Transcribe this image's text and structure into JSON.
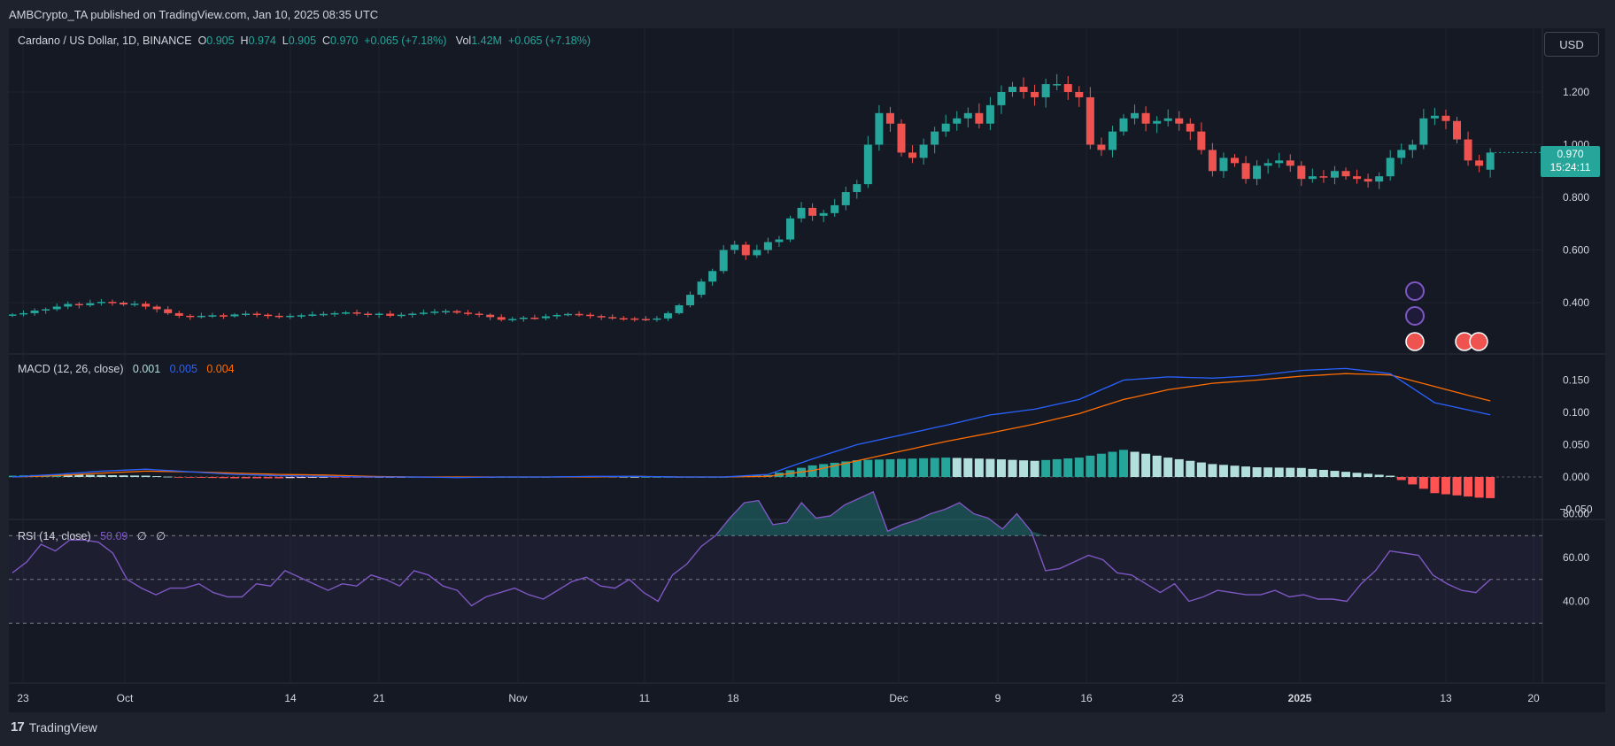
{
  "header": {
    "published": "AMBCrypto_TA published on TradingView.com, Jan 10, 2025 08:35 UTC"
  },
  "legend": {
    "symbol": "Cardano / US Dollar, 1D, BINANCE",
    "o_label": "O",
    "o_value": "0.905",
    "h_label": "H",
    "h_value": "0.974",
    "l_label": "L",
    "l_value": "0.905",
    "c_label": "C",
    "c_value": "0.970",
    "change": "+0.065 (+7.18%)",
    "vol_label": "Vol",
    "vol_value": "1.42M",
    "vol_change": "+0.065 (+7.18%)"
  },
  "macd_legend": {
    "label": "MACD (12, 26, close)",
    "hist": "0.001",
    "macd": "0.005",
    "signal": "0.004"
  },
  "rsi_legend": {
    "label": "RSI (14, close)",
    "value": "50.09",
    "extra1": "∅",
    "extra2": "∅"
  },
  "currency_button": "USD",
  "price_tag": {
    "price": "0.970",
    "countdown": "15:24:11"
  },
  "footer": {
    "brand": "TradingView",
    "logo": "17"
  },
  "colors": {
    "up": "#26a69a",
    "down": "#ef5350",
    "macd": "#2962ff",
    "signal": "#ff6d00",
    "rsi": "#7e57c2",
    "bg": "#151924"
  },
  "chart_data": [
    {
      "type": "candlestick",
      "title": "Cardano / US Dollar, 1D, BINANCE",
      "x_ticks": [
        "23",
        "Oct",
        "14",
        "21",
        "Nov",
        "11",
        "18",
        "Dec",
        "9",
        "16",
        "23",
        "2025",
        "13",
        "20"
      ],
      "y_ticks": [
        "1.200",
        "1.000",
        "0.800",
        "0.600",
        "0.400"
      ],
      "ylim": [
        0.21,
        1.38
      ],
      "grid": true,
      "closes": [
        0.355,
        0.36,
        0.37,
        0.375,
        0.385,
        0.395,
        0.39,
        0.398,
        0.403,
        0.4,
        0.393,
        0.396,
        0.385,
        0.375,
        0.36,
        0.35,
        0.345,
        0.35,
        0.352,
        0.348,
        0.355,
        0.358,
        0.354,
        0.35,
        0.346,
        0.35,
        0.352,
        0.355,
        0.357,
        0.36,
        0.363,
        0.358,
        0.354,
        0.358,
        0.35,
        0.354,
        0.358,
        0.362,
        0.366,
        0.368,
        0.362,
        0.358,
        0.354,
        0.345,
        0.335,
        0.338,
        0.343,
        0.341,
        0.348,
        0.353,
        0.357,
        0.354,
        0.349,
        0.345,
        0.341,
        0.34,
        0.338,
        0.335,
        0.34,
        0.36,
        0.39,
        0.43,
        0.48,
        0.52,
        0.6,
        0.62,
        0.58,
        0.6,
        0.63,
        0.64,
        0.72,
        0.76,
        0.73,
        0.74,
        0.77,
        0.82,
        0.85,
        1.0,
        1.12,
        1.08,
        0.97,
        0.95,
        1.0,
        1.05,
        1.08,
        1.1,
        1.12,
        1.08,
        1.15,
        1.2,
        1.22,
        1.2,
        1.18,
        1.23,
        1.23,
        1.2,
        1.18,
        1.0,
        0.98,
        1.05,
        1.1,
        1.12,
        1.08,
        1.09,
        1.1,
        1.08,
        1.05,
        0.98,
        0.9,
        0.95,
        0.93,
        0.87,
        0.92,
        0.93,
        0.94,
        0.92,
        0.87,
        0.88,
        0.875,
        0.9,
        0.88,
        0.87,
        0.86,
        0.88,
        0.95,
        0.98,
        1.0,
        1.1,
        1.11,
        1.09,
        1.02,
        0.94,
        0.92,
        0.97
      ],
      "opens": [
        0.35,
        0.355,
        0.36,
        0.37,
        0.375,
        0.385,
        0.395,
        0.39,
        0.398,
        0.403,
        0.4,
        0.393,
        0.396,
        0.385,
        0.375,
        0.36,
        0.35,
        0.345,
        0.35,
        0.352,
        0.348,
        0.355,
        0.358,
        0.354,
        0.35,
        0.346,
        0.35,
        0.352,
        0.355,
        0.357,
        0.36,
        0.363,
        0.358,
        0.354,
        0.358,
        0.35,
        0.354,
        0.358,
        0.362,
        0.366,
        0.368,
        0.362,
        0.358,
        0.354,
        0.345,
        0.335,
        0.338,
        0.343,
        0.341,
        0.348,
        0.353,
        0.357,
        0.354,
        0.349,
        0.345,
        0.341,
        0.34,
        0.338,
        0.335,
        0.34,
        0.36,
        0.39,
        0.43,
        0.48,
        0.52,
        0.6,
        0.62,
        0.58,
        0.6,
        0.63,
        0.64,
        0.72,
        0.76,
        0.73,
        0.74,
        0.77,
        0.82,
        0.85,
        1.0,
        1.12,
        1.08,
        0.97,
        0.95,
        1.0,
        1.05,
        1.08,
        1.1,
        1.12,
        1.08,
        1.15,
        1.2,
        1.22,
        1.2,
        1.18,
        1.23,
        1.23,
        1.2,
        1.18,
        1.0,
        0.98,
        1.05,
        1.1,
        1.12,
        1.08,
        1.09,
        1.1,
        1.08,
        1.05,
        0.98,
        0.9,
        0.95,
        0.93,
        0.87,
        0.92,
        0.93,
        0.94,
        0.92,
        0.87,
        0.88,
        0.875,
        0.9,
        0.88,
        0.87,
        0.86,
        0.88,
        0.95,
        0.98,
        1.0,
        1.1,
        1.11,
        1.09,
        1.02,
        0.94,
        0.905
      ]
    },
    {
      "type": "line",
      "title": "MACD (12, 26, close)",
      "y_ticks": [
        "0.150",
        "0.100",
        "0.050",
        "0.000",
        "−0.050"
      ],
      "ylim": [
        -0.063,
        0.175
      ],
      "series": [
        {
          "name": "MACD",
          "values_sampled_every_4": [
            0.0,
            0.004,
            0.009,
            0.012,
            0.008,
            0.004,
            0.002,
            0.001,
            0.0,
            0.0,
            -0.001,
            0.0,
            0.0,
            0.001,
            0.001,
            0.0,
            0.0,
            0.004,
            0.028,
            0.05,
            0.065,
            0.08,
            0.096,
            0.105,
            0.12,
            0.15,
            0.155,
            0.153,
            0.157,
            0.165,
            0.168,
            0.16,
            0.115,
            0.1,
            0.085,
            0.065,
            0.025,
            0.005,
            -0.01,
            -0.02,
            -0.028,
            -0.035,
            -0.018,
            0.012,
            0.02,
            0.005
          ]
        },
        {
          "name": "Signal",
          "values_sampled_every_4": [
            0.0,
            0.002,
            0.006,
            0.009,
            0.008,
            0.006,
            0.004,
            0.003,
            0.001,
            0.0,
            0.0,
            0.0,
            0.0,
            0.0,
            0.001,
            0.0,
            0.0,
            0.001,
            0.01,
            0.025,
            0.04,
            0.055,
            0.068,
            0.082,
            0.098,
            0.12,
            0.135,
            0.145,
            0.15,
            0.156,
            0.16,
            0.158,
            0.14,
            0.122,
            0.105,
            0.085,
            0.058,
            0.032,
            0.012,
            -0.003,
            -0.012,
            -0.02,
            -0.018,
            0.0,
            0.01,
            0.004
          ]
        },
        {
          "name": "Histogram",
          "values_sampled_every_4": [
            0.002,
            0.004,
            0.003,
            0.002,
            -0.001,
            -0.002,
            -0.002,
            -0.001,
            -0.001,
            0.0,
            -0.001,
            0.0,
            0.0,
            0.001,
            0.0,
            0.0,
            0.0,
            0.003,
            0.018,
            0.026,
            0.028,
            0.03,
            0.028,
            0.025,
            0.03,
            0.042,
            0.03,
            0.02,
            0.015,
            0.014,
            0.008,
            0.002,
            -0.025,
            -0.032,
            -0.035,
            -0.038,
            -0.04,
            -0.03,
            -0.022,
            -0.018,
            -0.015,
            -0.012,
            0.0,
            0.018,
            0.014,
            0.002
          ]
        }
      ]
    },
    {
      "type": "line",
      "title": "RSI (14, close)",
      "y_ticks": [
        "80.00",
        "60.00",
        "40.00"
      ],
      "ylim": [
        26,
        97
      ],
      "bands": [
        70,
        50,
        30
      ],
      "series": [
        {
          "name": "RSI",
          "values": [
            53,
            58,
            66,
            63,
            68,
            68,
            67,
            62,
            50,
            46,
            43,
            46,
            46,
            48,
            44,
            42,
            42,
            48,
            47,
            54,
            51,
            48,
            45,
            48,
            47,
            52,
            50,
            47,
            54,
            52,
            47,
            45,
            38,
            42,
            44,
            46,
            43,
            41,
            45,
            49,
            51,
            47,
            46,
            50,
            44,
            40,
            52,
            57,
            65,
            70,
            78,
            85,
            86,
            75,
            76,
            85,
            78,
            79,
            84,
            87,
            90,
            72,
            75,
            77,
            80,
            82,
            85,
            80,
            78,
            73,
            80,
            72,
            54,
            55,
            58,
            61,
            59,
            53,
            52,
            48,
            44,
            48,
            40,
            42,
            45,
            44,
            43,
            43,
            45,
            42,
            43,
            41,
            41,
            40,
            48,
            54,
            63,
            62,
            61,
            52,
            48,
            45,
            44,
            50
          ]
        }
      ]
    }
  ]
}
